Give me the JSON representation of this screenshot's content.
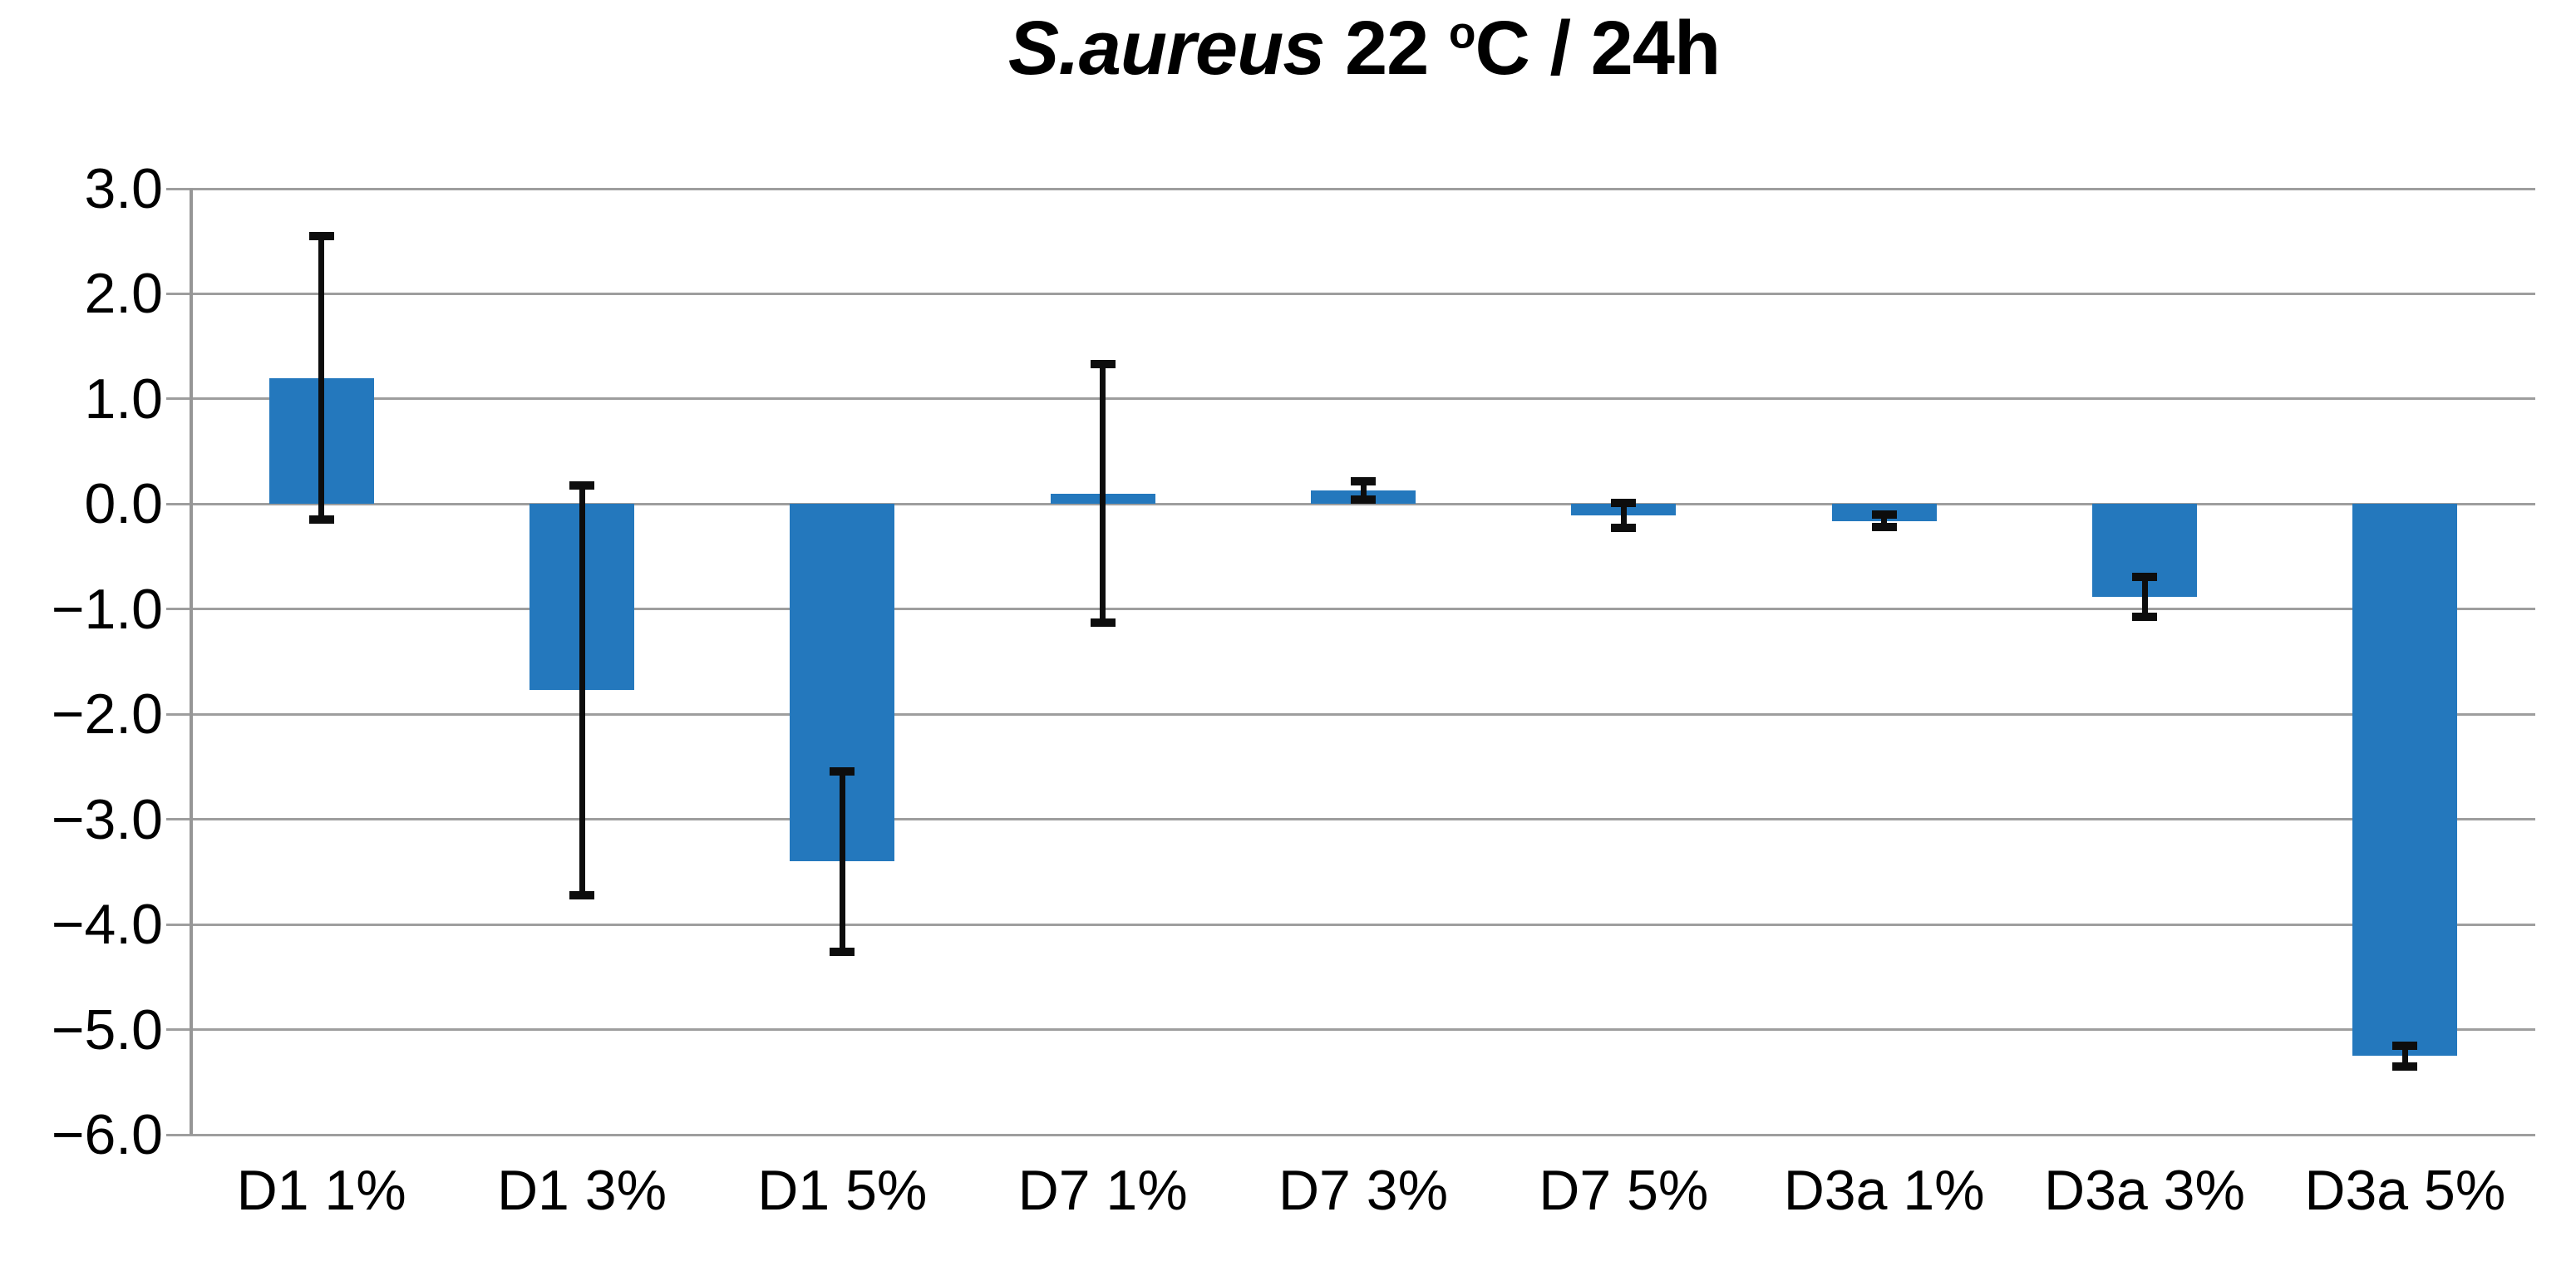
{
  "chart_data": {
    "type": "bar",
    "title": "S.aureus 22 oC / 24h",
    "title_parts": {
      "species": "S.aureus",
      "temperature": " 22 ",
      "degree_symbol": "o",
      "suffix": "C / 24h"
    },
    "xlabel": "",
    "ylabel": "",
    "categories": [
      "D1 1%",
      "D1 3%",
      "D1 5%",
      "D7 1%",
      "D7 3%",
      "D7 5%",
      "D3a 1%",
      "D3a 3%",
      "D3a 5%"
    ],
    "values": [
      1.2,
      -1.77,
      -3.4,
      0.1,
      0.13,
      -0.11,
      -0.16,
      -0.88,
      -5.25
    ],
    "errors": [
      1.35,
      1.95,
      0.86,
      1.23,
      0.09,
      0.12,
      0.06,
      0.19,
      0.1
    ],
    "ylim": [
      -6.0,
      3.0
    ],
    "ytick_step": 1.0,
    "ytick_labels": [
      "3.0",
      "2.0",
      "1.0",
      "0.0",
      "−1.0",
      "−2.0",
      "−3.0",
      "−4.0",
      "−5.0",
      "−6.0"
    ],
    "grid": true,
    "legend": null,
    "colors": {
      "bar": "#2478BD",
      "gridline": "#9E9E9E",
      "axis": "#969696",
      "error_bar": "#0D0D0D",
      "background": "#FFFFFF",
      "text": "#000000"
    }
  }
}
